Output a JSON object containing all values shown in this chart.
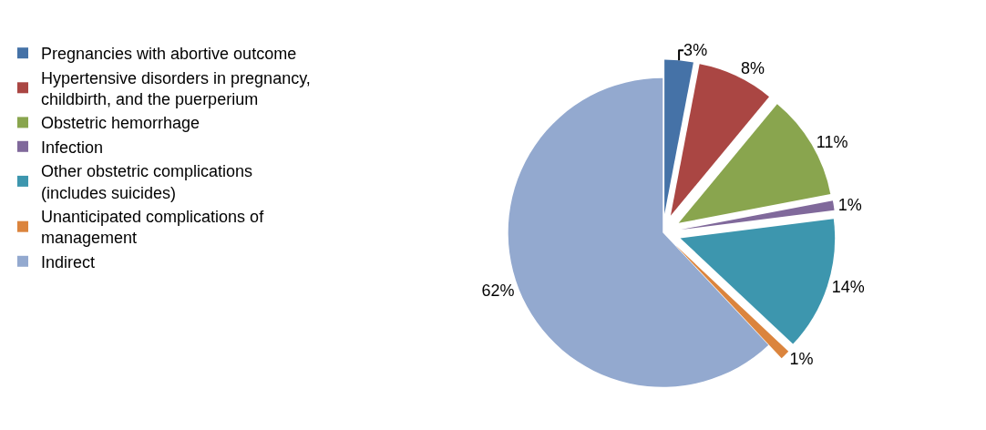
{
  "chart_data": {
    "type": "pie",
    "categories": [
      "Pregnancies with abortive outcome",
      "Hypertensive disorders in pregnancy, childbirth, and the puerperium",
      "Obstetric hemorrhage",
      "Infection",
      "Other obstetric complications (includes suicides)",
      "Unanticipated complications of management",
      "Indirect"
    ],
    "values": [
      3,
      8,
      11,
      1,
      14,
      1,
      62
    ],
    "value_labels": [
      "3%",
      "8%",
      "11%",
      "1%",
      "14%",
      "1%",
      "62%"
    ],
    "colors": [
      "#4572a7",
      "#aa4643",
      "#89a54e",
      "#80699b",
      "#3d96ae",
      "#db843d",
      "#93a9cf"
    ],
    "legend": "left"
  }
}
